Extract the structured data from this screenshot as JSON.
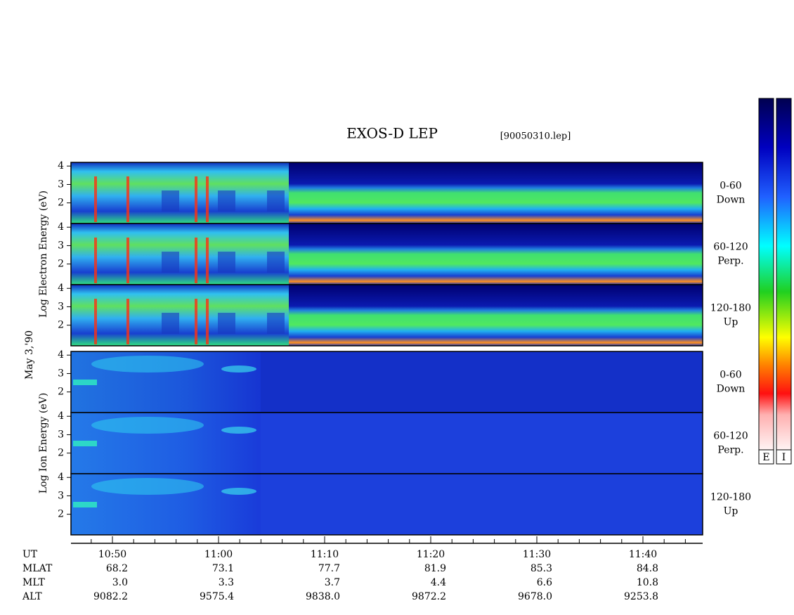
{
  "title": "EXOS-D LEP",
  "file": "[90050310.lep]",
  "date": "May  3,'90",
  "groups": [
    {
      "ylabel": "Log Electron Energy (eV)",
      "panels": [
        {
          "label": [
            "0-60",
            "Down"
          ]
        },
        {
          "label": [
            "60-120",
            "Perp."
          ]
        },
        {
          "label": [
            "120-180",
            "Up"
          ]
        }
      ]
    },
    {
      "ylabel": "Log Ion Energy (eV)",
      "panels": [
        {
          "label": [
            "0-60",
            "Down"
          ]
        },
        {
          "label": [
            "60-120",
            "Perp."
          ]
        },
        {
          "label": [
            "120-180",
            "Up"
          ]
        }
      ]
    }
  ],
  "ylim": [
    0.88,
    4.2
  ],
  "yticks": [
    2,
    3,
    4
  ],
  "time": {
    "name": "UT",
    "categories": [
      "10:50",
      "11:00",
      "11:10",
      "11:20",
      "11:30",
      "11:40"
    ]
  },
  "ephemeris": [
    {
      "name": "MLAT",
      "values": [
        "68.2",
        "73.1",
        "77.7",
        "81.9",
        "85.3",
        "84.8"
      ]
    },
    {
      "name": "MLT",
      "values": [
        "3.0",
        "3.3",
        "3.7",
        "4.4",
        "6.6",
        "10.8"
      ]
    },
    {
      "name": "ALT",
      "values": [
        "9082.2",
        "9575.4",
        "9838.0",
        "9872.2",
        "9678.0",
        "9253.8"
      ]
    }
  ],
  "colorbars": [
    "E",
    "I"
  ]
}
